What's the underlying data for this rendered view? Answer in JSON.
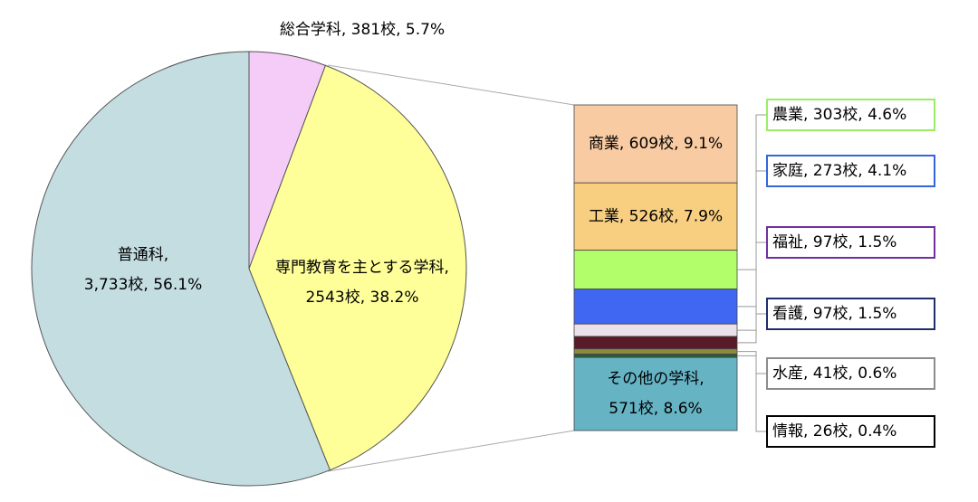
{
  "chart_data": [
    {
      "type": "pie",
      "categories": [
        "総合学科",
        "専門教育を主とする学科",
        "普通科"
      ],
      "values": [
        381,
        2543,
        3733
      ],
      "value_labels": [
        [
          "総合学科, 381校, 5.7%"
        ],
        [
          "専門教育を主とする学科,",
          "2543校, 38.2%"
        ],
        [
          "普通科,",
          "3,733校, 56.1%"
        ]
      ],
      "colors": [
        "#f5ccf7",
        "#ffff99",
        "#c3dde1"
      ]
    },
    {
      "type": "stacked-bar",
      "categories": [
        "商業",
        "工業",
        "農業",
        "家庭",
        "福祉",
        "看護",
        "水産",
        "情報",
        "その他の学科"
      ],
      "values": [
        609,
        526,
        303,
        273,
        97,
        97,
        41,
        26,
        571
      ],
      "value_labels": [
        [
          "商業, 609校, 9.1%"
        ],
        [
          "工業, 526校, 7.9%"
        ],
        [
          "農業, 303校, 4.6%"
        ],
        [
          "家庭, 273校, 4.1%"
        ],
        [
          "福祉, 97校, 1.5%"
        ],
        [
          "看護, 97校, 1.5%"
        ],
        [
          "水産, 41校, 0.6%"
        ],
        [
          "情報, 26校, 0.4%"
        ],
        [
          "その他の学科,",
          "571校, 8.6%"
        ]
      ],
      "colors": [
        "#f8cba2",
        "#f8ce80",
        "#b2fe6a",
        "#3f67f2",
        "#ebe1ea",
        "#5a1b28",
        "#8c8a3c",
        "#2e5b3c",
        "#66b3c4"
      ],
      "label_border_colors": [
        null,
        null,
        "#99ee66",
        "#3366dd",
        "#7030a0",
        "#1f2d6b",
        "#8c8c8c",
        "#000000",
        null
      ]
    }
  ]
}
